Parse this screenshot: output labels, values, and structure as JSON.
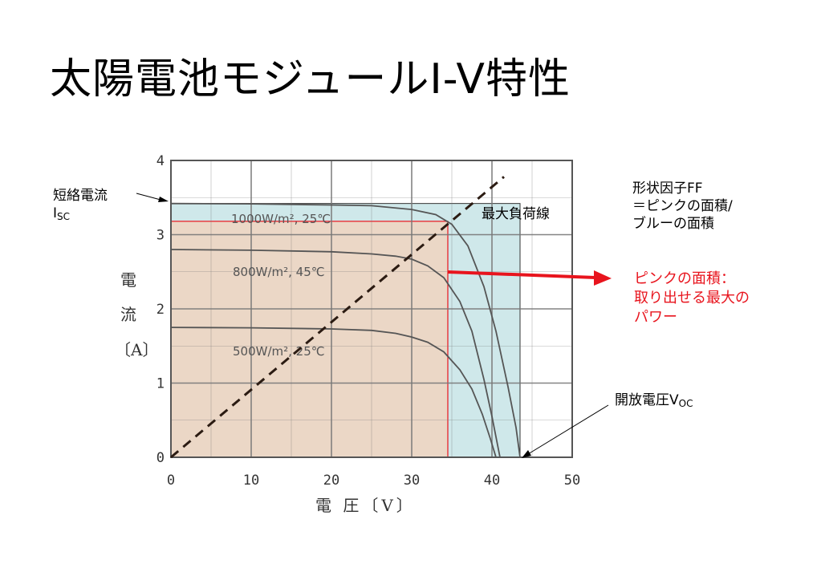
{
  "title": "太陽電池モジュールI-V特性",
  "annotations": {
    "isc_line1": "短絡電流",
    "isc_main": "I",
    "isc_sub": "SC",
    "max_load": "最大負荷線",
    "ff_line1": "形状因子FF",
    "ff_line2": "＝ピンクの面積/",
    "ff_line3": "ブルーの面積",
    "pink_line1": "ピンクの面積：",
    "pink_line2": "取り出せる最大の",
    "pink_line3": "パワー",
    "voc_main": "開放電圧V",
    "voc_sub": "OC"
  },
  "axis": {
    "y_chars": [
      "電",
      "流",
      "〔A〕"
    ],
    "x_label": "電 圧〔V〕"
  },
  "colors": {
    "blue_area": "#cfe8ea",
    "pink_area": "#ebd7c6",
    "red": "#e8141d",
    "curve": "#555555",
    "grid": "#777777",
    "dashed": "#2b1b12"
  },
  "chart_data": {
    "type": "line",
    "xlim": [
      0,
      50
    ],
    "ylim": [
      0,
      4
    ],
    "x_ticks": [
      0,
      10,
      20,
      30,
      40,
      50
    ],
    "y_ticks": [
      0,
      1,
      2,
      3,
      4
    ],
    "series": [
      {
        "name": "1000W/m², 25℃",
        "isc": 3.42,
        "voc": 43.5,
        "points": [
          [
            0,
            3.42
          ],
          [
            10,
            3.415
          ],
          [
            20,
            3.4
          ],
          [
            25,
            3.39
          ],
          [
            30,
            3.34
          ],
          [
            33,
            3.27
          ],
          [
            35,
            3.14
          ],
          [
            37,
            2.85
          ],
          [
            39,
            2.3
          ],
          [
            40.5,
            1.7
          ],
          [
            42,
            0.95
          ],
          [
            43,
            0.4
          ],
          [
            43.5,
            0
          ]
        ]
      },
      {
        "name": "800W/m², 45℃",
        "isc": 2.8,
        "voc": 41,
        "points": [
          [
            0,
            2.8
          ],
          [
            10,
            2.79
          ],
          [
            20,
            2.77
          ],
          [
            25,
            2.74
          ],
          [
            28,
            2.71
          ],
          [
            30,
            2.67
          ],
          [
            32,
            2.58
          ],
          [
            34,
            2.42
          ],
          [
            36,
            2.1
          ],
          [
            37.5,
            1.7
          ],
          [
            39,
            1.05
          ],
          [
            40,
            0.55
          ],
          [
            41,
            0
          ]
        ]
      },
      {
        "name": "500W/m², 25℃",
        "isc": 1.75,
        "voc": 40.5,
        "points": [
          [
            0,
            1.75
          ],
          [
            10,
            1.745
          ],
          [
            20,
            1.73
          ],
          [
            25,
            1.71
          ],
          [
            28,
            1.67
          ],
          [
            30,
            1.62
          ],
          [
            32,
            1.55
          ],
          [
            34,
            1.42
          ],
          [
            36,
            1.18
          ],
          [
            37.5,
            0.92
          ],
          [
            38.8,
            0.58
          ],
          [
            39.8,
            0.25
          ],
          [
            40.5,
            0
          ]
        ]
      }
    ],
    "shaded_areas": [
      {
        "name": "ブルーの面積",
        "x": [
          0,
          43.5
        ],
        "y": [
          0,
          3.42
        ]
      },
      {
        "name": "ピンクの面積",
        "x": [
          0,
          34.5
        ],
        "y": [
          0,
          3.18
        ]
      }
    ],
    "max_load_line": {
      "from": [
        0,
        0
      ],
      "to": [
        41.5,
        3.78
      ]
    },
    "max_power_point": [
      34.5,
      3.18
    ]
  }
}
